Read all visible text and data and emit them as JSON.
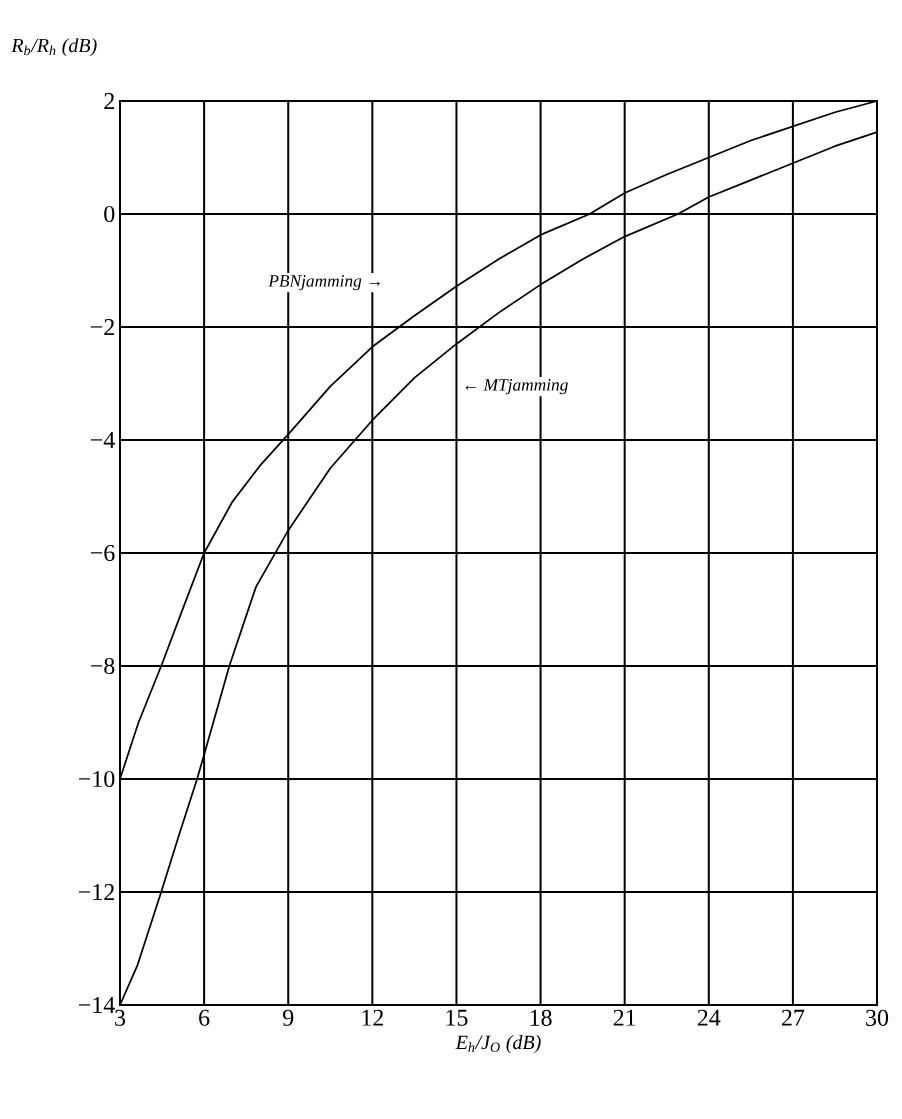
{
  "chart_data": {
    "type": "line",
    "xlabel": "E$_{h}$/J$_{O}$ (dB)",
    "ylabel": "R$_{b}$/R$_{h}$ (dB)",
    "xlim": [
      3,
      30
    ],
    "ylim": [
      -14,
      2
    ],
    "xticks": [
      3,
      6,
      9,
      12,
      15,
      18,
      21,
      24,
      27,
      30
    ],
    "yticks": [
      2,
      0,
      {
        "value": -2,
        "label": "−2"
      },
      {
        "value": -4,
        "label": "−4"
      },
      {
        "value": -6,
        "label": "−6"
      },
      {
        "value": -8,
        "label": "−8"
      },
      {
        "value": -10,
        "label": "−10"
      },
      {
        "value": -12,
        "label": "−12"
      },
      {
        "value": -14,
        "label": "−14"
      }
    ],
    "grid": true,
    "marker": "none",
    "line_style": "solid",
    "series": [
      {
        "name": null,
        "color": "#000000",
        "x": [
          3,
          3.66,
          4.47,
          5.27,
          6,
          7,
          8,
          9,
          10.5,
          12,
          13.5,
          15,
          16.5,
          18,
          19.75,
          21,
          22.5,
          24,
          25.5,
          27,
          28.5,
          30
        ],
        "values": [
          -10,
          -9,
          -8,
          -6.95,
          -6,
          -5.1,
          -4.45,
          -3.9,
          -3.05,
          -2.35,
          -1.8,
          -1.28,
          -0.8,
          -0.37,
          0,
          0.37,
          0.7,
          1.0,
          1.3,
          1.55,
          1.8,
          2.0
        ]
      },
      {
        "name": null,
        "color": "#000000",
        "x": [
          3,
          3.62,
          4.47,
          5.1,
          5.75,
          6,
          6.9,
          7.85,
          9,
          10.5,
          12,
          13.5,
          15,
          16.5,
          18,
          19.5,
          21,
          22.9,
          24,
          25.5,
          27,
          28.5,
          30
        ],
        "values": [
          -14,
          -13.3,
          -12,
          -11,
          -10,
          -9.57,
          -8,
          -6.6,
          -5.6,
          -4.5,
          -3.65,
          -2.9,
          -2.3,
          -1.75,
          -1.25,
          -0.8,
          -0.4,
          0,
          0.3,
          0.6,
          0.9,
          1.2,
          1.45
        ]
      }
    ],
    "annotations": [
      "PBNjamming →",
      "← MTjamming"
    ]
  }
}
